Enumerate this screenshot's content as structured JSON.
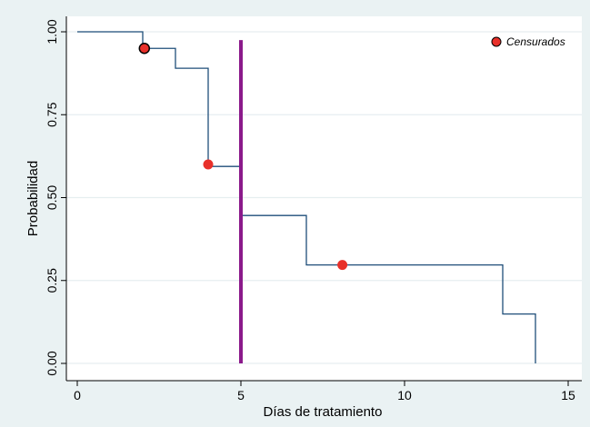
{
  "chart_data": {
    "type": "line",
    "title": "",
    "xlabel": "Días de tratamiento",
    "ylabel": "Probabilidad",
    "xlim": [
      0,
      15
    ],
    "ylim": [
      0,
      1
    ],
    "x_ticks": [
      0,
      5,
      10,
      15
    ],
    "y_ticks": [
      0,
      0.25,
      0.5,
      0.75,
      1
    ],
    "x_tick_labels": [
      "0",
      "5",
      "10",
      "15"
    ],
    "y_tick_labels": [
      "0.00",
      "0.25",
      "0.50",
      "0.75",
      "1.00"
    ],
    "grid": "horizontal",
    "legend": {
      "position": "top-right",
      "label": "Censurados"
    },
    "series": [
      {
        "style": "step",
        "color": "#1f4e79",
        "steps": [
          {
            "x": 0,
            "y": 1.0
          },
          {
            "x": 2,
            "y": 0.95
          },
          {
            "x": 3,
            "y": 0.89
          },
          {
            "x": 4,
            "y": 0.594
          },
          {
            "x": 5,
            "y": 0.446
          },
          {
            "x": 7,
            "y": 0.297
          },
          {
            "x": 13,
            "y": 0.149
          },
          {
            "x": 14,
            "y": 0.0
          }
        ],
        "censored": [
          {
            "x": 2.05,
            "y": 0.95
          },
          {
            "x": 4,
            "y": 0.6
          },
          {
            "x": 8.1,
            "y": 0.297
          }
        ]
      }
    ],
    "reference_line": {
      "x": 5,
      "y_from": 0,
      "y_to": 0.975,
      "color": "#8b1a8b"
    },
    "colors": {
      "background": "#eaf2f3",
      "plot_background": "#ffffff",
      "grid": "#e6eef0",
      "censor_marker": "#e8302a"
    }
  }
}
